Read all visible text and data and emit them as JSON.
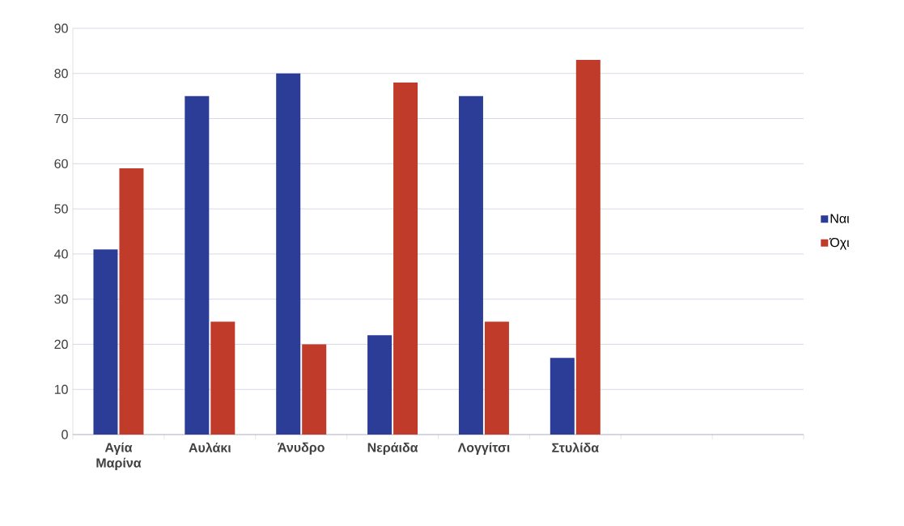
{
  "chart_data": {
    "type": "bar",
    "categories": [
      "Αγία Μαρίνα",
      "Αυλάκι",
      "Άνυδρο",
      "Νεράιδα",
      "Λογγίτσι",
      "Στυλίδα",
      null,
      null
    ],
    "series": [
      {
        "name": "Ναι",
        "color": "#2b3d96",
        "values": [
          41,
          75,
          80,
          22,
          75,
          17,
          null,
          null
        ]
      },
      {
        "name": "Όχι",
        "color": "#c13b2b",
        "values": [
          59,
          25,
          20,
          78,
          25,
          83,
          null,
          null
        ]
      }
    ],
    "ylim": [
      0,
      90
    ],
    "yticks": [
      0,
      10,
      20,
      30,
      40,
      50,
      60,
      70,
      80,
      90
    ],
    "grid": "y",
    "legend": "right"
  }
}
